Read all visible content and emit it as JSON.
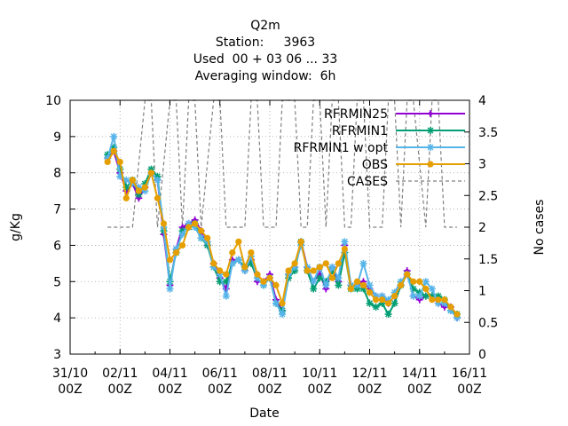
{
  "chart_data": {
    "type": "line",
    "title_lines": [
      "Q2m",
      "Station:     3963",
      "Used  00 + 03 06 ... 33",
      "Averaging window:  6h"
    ],
    "xlabel": "Date",
    "ylabel": "g/Kg",
    "y2label": "No cases",
    "xlim": [
      "2013-10-31 00:00",
      "2013-11-16 00:00"
    ],
    "ylim": [
      3,
      10
    ],
    "y2lim": [
      0,
      4
    ],
    "x_ticks": [
      "31/10 00Z",
      "02/11 00Z",
      "04/11 00Z",
      "06/11 00Z",
      "08/11 00Z",
      "10/11 00Z",
      "12/11 00Z",
      "14/11 00Z",
      "16/11 00Z"
    ],
    "y_ticks": [
      "3",
      "4",
      "5",
      "6",
      "7",
      "8",
      "9",
      "10"
    ],
    "y2_ticks": [
      "0",
      "0.5",
      "1",
      "1.5",
      "2",
      "2.5",
      "3",
      "3.5",
      "4"
    ],
    "grid": true,
    "legend_position": "top-right",
    "x_step_hours": 6,
    "x_start": "2013-11-01 12:00",
    "series": [
      {
        "name": "RFRMIN25",
        "color": "#9400d3",
        "marker": "plus",
        "values": [
          8.4,
          8.6,
          8.0,
          7.5,
          7.7,
          7.3,
          7.6,
          8.0,
          7.8,
          6.3,
          4.9,
          5.9,
          6.5,
          6.6,
          6.7,
          6.4,
          6.0,
          5.5,
          5.1,
          4.8,
          5.6,
          5.6,
          5.3,
          5.6,
          5.0,
          5.0,
          5.2,
          4.5,
          4.2,
          5.2,
          5.4,
          6.1,
          5.4,
          5.0,
          5.2,
          4.8,
          5.4,
          5.0,
          6.0,
          4.9,
          4.9,
          5.0,
          4.8,
          4.6,
          4.6,
          4.4,
          4.6,
          4.9,
          5.3,
          4.6,
          4.5,
          4.6,
          4.6,
          4.4,
          4.3,
          4.3,
          4.0
        ]
      },
      {
        "name": "RFRMIN1",
        "color": "#009e73",
        "marker": "star",
        "values": [
          8.5,
          8.7,
          8.1,
          7.6,
          7.8,
          7.4,
          7.7,
          8.1,
          7.9,
          6.4,
          5.0,
          5.8,
          6.4,
          6.5,
          6.6,
          6.2,
          6.0,
          5.4,
          5.0,
          5.0,
          5.5,
          5.6,
          5.4,
          5.5,
          5.1,
          4.9,
          5.1,
          4.4,
          4.2,
          5.1,
          5.3,
          6.1,
          5.3,
          4.8,
          5.1,
          5.0,
          5.3,
          4.9,
          5.8,
          4.8,
          4.8,
          4.8,
          4.4,
          4.3,
          4.4,
          4.1,
          4.4,
          4.9,
          5.2,
          4.8,
          4.7,
          4.6,
          4.6,
          4.6,
          4.5,
          4.2,
          4.1
        ]
      },
      {
        "name": "RFRMIN1 w opt",
        "color": "#56b4e9",
        "marker": "star",
        "values": [
          8.4,
          9.0,
          7.9,
          7.8,
          7.7,
          7.6,
          7.5,
          8.0,
          7.8,
          6.5,
          4.8,
          5.9,
          6.3,
          6.6,
          6.5,
          6.2,
          6.1,
          5.4,
          5.2,
          4.6,
          5.5,
          5.6,
          5.3,
          5.7,
          5.1,
          4.9,
          5.1,
          4.4,
          4.1,
          5.2,
          5.4,
          6.0,
          5.4,
          5.0,
          5.4,
          4.9,
          5.4,
          5.1,
          6.1,
          4.9,
          4.9,
          5.5,
          4.9,
          4.6,
          4.6,
          4.5,
          4.7,
          5.0,
          5.2,
          4.6,
          4.6,
          5.0,
          4.8,
          4.4,
          4.4,
          4.2,
          4.0
        ]
      },
      {
        "name": "OBS",
        "color": "#e69f00",
        "marker": "circle",
        "values": [
          8.3,
          8.6,
          8.3,
          7.3,
          7.8,
          7.5,
          7.6,
          8.0,
          7.3,
          6.6,
          5.6,
          5.8,
          6.0,
          6.5,
          6.6,
          6.4,
          6.2,
          5.5,
          5.3,
          5.2,
          5.8,
          6.1,
          5.4,
          5.8,
          5.2,
          5.0,
          5.1,
          4.9,
          4.4,
          5.3,
          5.5,
          6.1,
          5.3,
          5.3,
          5.4,
          5.5,
          5.1,
          5.5,
          5.9,
          4.8,
          5.0,
          4.9,
          4.7,
          4.5,
          4.5,
          4.4,
          4.6,
          4.9,
          5.2,
          5.0,
          5.0,
          4.8,
          4.5,
          4.5,
          4.5,
          4.3,
          4.1
        ]
      }
    ],
    "cases": {
      "name": "CASES",
      "color": "#808080",
      "axis": "y2",
      "values": [
        2,
        2,
        2,
        2,
        2,
        3,
        4,
        4,
        2,
        3,
        4,
        4,
        2,
        4,
        4,
        2,
        3,
        4,
        4,
        2,
        2,
        2,
        2,
        4,
        4,
        2,
        2,
        2,
        4,
        4,
        4,
        2,
        2,
        4,
        4,
        2,
        4,
        4,
        2,
        2,
        4,
        4,
        2,
        2,
        2,
        4,
        4,
        2,
        4,
        4,
        3,
        2,
        4,
        4,
        2,
        2,
        2
      ]
    }
  }
}
